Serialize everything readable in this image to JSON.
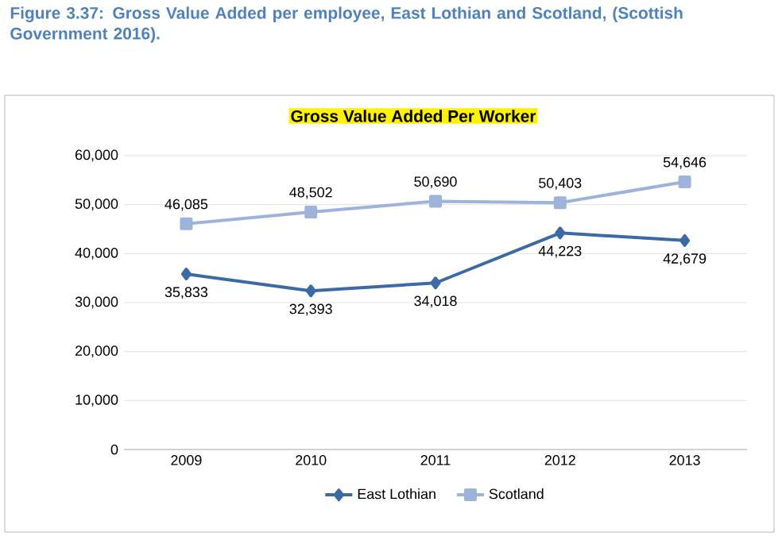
{
  "chart_data": {
    "type": "line",
    "title": "Gross  Value Added Per Worker",
    "annotations": [
      "Figure 3.37: **Gross Value Added** per employee, East Lothian and Scotland, (Scottish Government 2016)."
    ],
    "categories": [
      "2009",
      "2010",
      "2011",
      "2012",
      "2013"
    ],
    "series": [
      {
        "name": "East Lothian",
        "color": "#3c6aa6",
        "marker": "diamond",
        "values": [
          35833,
          32393,
          34018,
          44223,
          42679
        ],
        "value_labels": [
          "35,833",
          "32,393",
          "34,018",
          "44,223",
          "42,679"
        ]
      },
      {
        "name": "Scotland",
        "color": "#9db3da",
        "marker": "square",
        "values": [
          46085,
          48502,
          50690,
          50403,
          54646
        ],
        "value_labels": [
          "46,085",
          "48,502",
          "50,690",
          "50,403",
          "54,646"
        ]
      }
    ],
    "ylim": [
      0,
      60000
    ],
    "yticks": [
      {
        "value": 0,
        "label": "0"
      },
      {
        "value": 10000,
        "label": "10,000"
      },
      {
        "value": 20000,
        "label": "20,000"
      },
      {
        "value": 30000,
        "label": "30,000"
      },
      {
        "value": 40000,
        "label": "40,000"
      },
      {
        "value": 50000,
        "label": "50,000"
      },
      {
        "value": 60000,
        "label": "60,000"
      }
    ],
    "grid": "y",
    "legend": "bottom",
    "line_style": "solid"
  }
}
